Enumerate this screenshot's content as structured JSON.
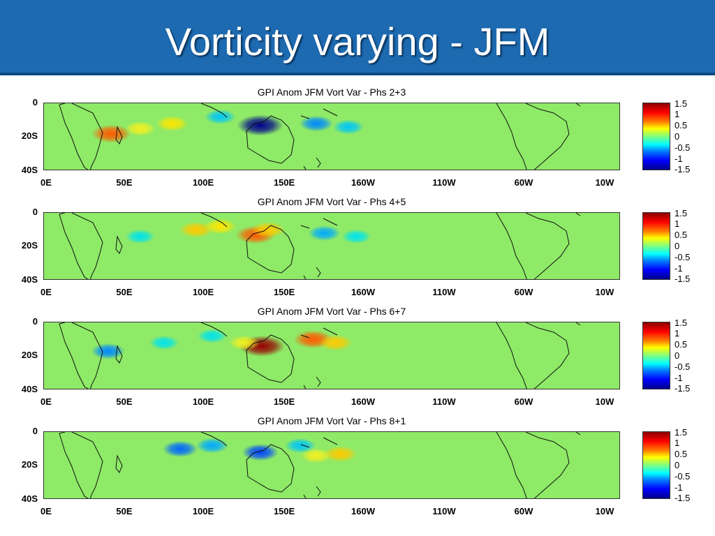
{
  "slide": {
    "title": "Vorticity varying - JFM",
    "colors": {
      "header": "#1d6ab0",
      "title_text": "#ffffff",
      "coastline": "#111111",
      "background_field": "#8eea67"
    }
  },
  "chart_data": [
    {
      "type": "heatmap",
      "title": "GPI Anom JFM Vort Var - Phs 2+3",
      "xlabel": "",
      "ylabel": "",
      "x_ticks": [
        "0E",
        "50E",
        "100E",
        "150E",
        "160W",
        "110W",
        "60W",
        "10W"
      ],
      "y_ticks": [
        "0",
        "20S",
        "40S"
      ],
      "xlim": [
        0,
        360
      ],
      "ylim": [
        -40,
        0
      ],
      "colorbar": {
        "ticks": [
          "1.5",
          "1",
          "0.5",
          "0",
          "-0.5",
          "-1",
          "-1.5"
        ],
        "range": [
          -1.5,
          1.5
        ]
      },
      "anomalies": [
        {
          "lon": 42,
          "lat": -18,
          "value": 1.0
        },
        {
          "lon": 80,
          "lat": -12,
          "value": 0.5
        },
        {
          "lon": 60,
          "lat": -15,
          "value": 0.4
        },
        {
          "lon": 110,
          "lat": -8,
          "value": -0.4
        },
        {
          "lon": 135,
          "lat": -13,
          "value": -1.5
        },
        {
          "lon": 170,
          "lat": -12,
          "value": -0.6
        },
        {
          "lon": 190,
          "lat": -14,
          "value": -0.4
        }
      ]
    },
    {
      "type": "heatmap",
      "title": "GPI Anom JFM Vort Var - Phs 4+5",
      "xlabel": "",
      "ylabel": "",
      "x_ticks": [
        "0E",
        "50E",
        "100E",
        "150E",
        "160W",
        "110W",
        "60W",
        "10W"
      ],
      "y_ticks": [
        "0",
        "20S",
        "40S"
      ],
      "xlim": [
        0,
        360
      ],
      "ylim": [
        -40,
        0
      ],
      "colorbar": {
        "ticks": [
          "1.5",
          "1",
          "0.5",
          "0",
          "-0.5",
          "-1",
          "-1.5"
        ],
        "range": [
          -1.5,
          1.5
        ]
      },
      "anomalies": [
        {
          "lon": 95,
          "lat": -10,
          "value": 0.6
        },
        {
          "lon": 110,
          "lat": -8,
          "value": 0.5
        },
        {
          "lon": 132,
          "lat": -13,
          "value": 1.0
        },
        {
          "lon": 140,
          "lat": -10,
          "value": 0.6
        },
        {
          "lon": 60,
          "lat": -14,
          "value": -0.3
        },
        {
          "lon": 175,
          "lat": -12,
          "value": -0.5
        },
        {
          "lon": 195,
          "lat": -14,
          "value": -0.3
        }
      ]
    },
    {
      "type": "heatmap",
      "title": "GPI Anom JFM Vort Var - Phs 6+7",
      "xlabel": "",
      "ylabel": "",
      "x_ticks": [
        "0E",
        "50E",
        "100E",
        "150E",
        "160W",
        "110W",
        "60W",
        "10W"
      ],
      "y_ticks": [
        "0",
        "20S",
        "40S"
      ],
      "xlim": [
        0,
        360
      ],
      "ylim": [
        -40,
        0
      ],
      "colorbar": {
        "ticks": [
          "1.5",
          "1",
          "0.5",
          "0",
          "-0.5",
          "-1",
          "-1.5"
        ],
        "range": [
          -1.5,
          1.5
        ]
      },
      "anomalies": [
        {
          "lon": 136,
          "lat": -14,
          "value": 1.5
        },
        {
          "lon": 168,
          "lat": -10,
          "value": 1.0
        },
        {
          "lon": 182,
          "lat": -12,
          "value": 0.6
        },
        {
          "lon": 125,
          "lat": -12,
          "value": 0.4
        },
        {
          "lon": 40,
          "lat": -17,
          "value": -0.6
        },
        {
          "lon": 75,
          "lat": -12,
          "value": -0.3
        },
        {
          "lon": 105,
          "lat": -8,
          "value": -0.3
        }
      ]
    },
    {
      "type": "heatmap",
      "title": "GPI Anom JFM Vort Var - Phs 8+1",
      "xlabel": "",
      "ylabel": "",
      "x_ticks": [
        "0E",
        "50E",
        "100E",
        "150E",
        "160W",
        "110W",
        "60W",
        "10W"
      ],
      "y_ticks": [
        "0",
        "20S",
        "40S"
      ],
      "xlim": [
        0,
        360
      ],
      "ylim": [
        -40,
        0
      ],
      "colorbar": {
        "ticks": [
          "1.5",
          "1",
          "0.5",
          "0",
          "-0.5",
          "-1",
          "-1.5"
        ],
        "range": [
          -1.5,
          1.5
        ]
      },
      "anomalies": [
        {
          "lon": 85,
          "lat": -10,
          "value": -0.7
        },
        {
          "lon": 105,
          "lat": -8,
          "value": -0.5
        },
        {
          "lon": 135,
          "lat": -12,
          "value": -0.8
        },
        {
          "lon": 160,
          "lat": -8,
          "value": -0.4
        },
        {
          "lon": 185,
          "lat": -13,
          "value": 0.6
        },
        {
          "lon": 170,
          "lat": -14,
          "value": 0.4
        }
      ]
    }
  ]
}
